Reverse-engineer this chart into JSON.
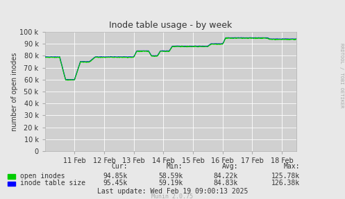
{
  "title": "Inode table usage - by week",
  "ylabel": "number of open inodes",
  "bg_color": "#e8e8e8",
  "plot_bg_color": "#d0d0d0",
  "grid_color": "#ffffff",
  "text_color": "#333333",
  "ylim": [
    0,
    100000
  ],
  "yticks": [
    0,
    10000,
    20000,
    30000,
    40000,
    50000,
    60000,
    70000,
    80000,
    90000,
    100000
  ],
  "ytick_labels": [
    "0",
    "10 k",
    "20 k",
    "30 k",
    "40 k",
    "50 k",
    "60 k",
    "70 k",
    "80 k",
    "90 k",
    "100 k"
  ],
  "xtick_positions": [
    1,
    2,
    3,
    4,
    5,
    6,
    7,
    8
  ],
  "xtick_labels": [
    "11 Feb",
    "12 Feb",
    "13 Feb",
    "14 Feb",
    "15 Feb",
    "16 Feb",
    "17 Feb",
    "18 Feb"
  ],
  "line_green_color": "#00cc00",
  "line_blue_color": "#0000ff",
  "legend_labels": [
    "open inodes",
    "inode table size"
  ],
  "footer_text": "Last update: Wed Feb 19 09:00:13 2025",
  "munin_text": "Munin 2.0.75",
  "stats_cur_green": "94.85k",
  "stats_min_green": "58.59k",
  "stats_avg_green": "84.22k",
  "stats_max_green": "125.78k",
  "stats_cur_blue": "95.45k",
  "stats_min_blue": "59.19k",
  "stats_avg_blue": "84.83k",
  "stats_max_blue": "126.38k",
  "rrdtool_text": "RRDTOOL / TOBI OETIKER",
  "watermark_color": "#aaaaaa"
}
